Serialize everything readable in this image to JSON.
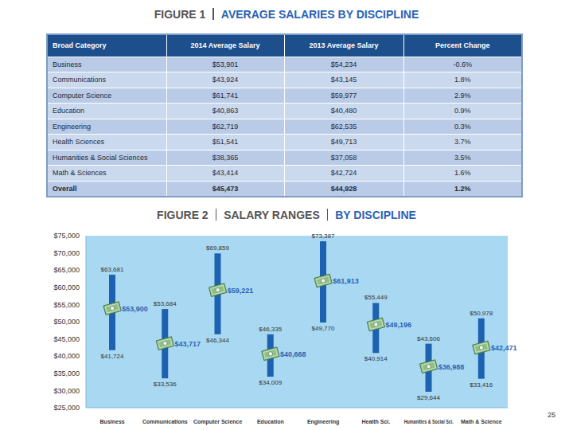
{
  "figure1": {
    "label": "FIGURE 1",
    "title": "AVERAGE SALARIES BY DISCIPLINE",
    "table": {
      "header": [
        "Broad Category",
        "2014 Average Salary",
        "2013 Average Salary",
        "Percent Change"
      ],
      "rows": [
        [
          "Business",
          "$53,901",
          "$54,234",
          "-0.6%"
        ],
        [
          "Communications",
          "$43,924",
          "$43,145",
          "1.8%"
        ],
        [
          "Computer Science",
          "$61,741",
          "$59,977",
          "2.9%"
        ],
        [
          "Education",
          "$40,863",
          "$40,480",
          "0.9%"
        ],
        [
          "Engineering",
          "$62,719",
          "$62,535",
          "0.3%"
        ],
        [
          "Health Sciences",
          "$51,541",
          "$49,713",
          "3.7%"
        ],
        [
          "Humanities & Social Sciences",
          "$38,365",
          "$37,058",
          "3.5%"
        ],
        [
          "Math & Sciences",
          "$43,414",
          "$42,724",
          "1.6%"
        ],
        [
          "Overall",
          "$45,473",
          "$44,928",
          "1.2%"
        ]
      ]
    }
  },
  "chart_data": {
    "type": "range_bar",
    "label": "FIGURE 2",
    "title": "SALARY RANGES",
    "subtitle": "BY DISCIPLINE",
    "categories": [
      "Business",
      "Communications",
      "Computer Science",
      "Education",
      "Engineering",
      "Health Sci.",
      "Humanities & Social Sci.",
      "Math & Science"
    ],
    "low": {
      "values": [
        41724,
        33536,
        46344,
        34009,
        49770,
        40914,
        29644,
        33416
      ],
      "value_labels": [
        "$41,724",
        "$33,536",
        "$46,344",
        "$34,009",
        "$49,770",
        "$40,914",
        "$29,644",
        "$33,416"
      ]
    },
    "high": {
      "values": [
        63681,
        53684,
        69859,
        46335,
        73387,
        55449,
        43606,
        50978
      ],
      "value_labels": [
        "$63,681",
        "$53,684",
        "$69,859",
        "$46,335",
        "$73,387",
        "$55,449",
        "$43,606",
        "$50,978"
      ]
    },
    "average": {
      "values": [
        53900,
        43717,
        59221,
        40668,
        61913,
        49196,
        36988,
        42471
      ],
      "value_labels": [
        "$53,900",
        "$43,717",
        "$59,221",
        "$40,668",
        "$61,913",
        "$49,196",
        "$36,988",
        "$42,471"
      ],
      "color": "#8fbf86"
    },
    "color": "#1d62b0",
    "ylim": [
      25000,
      75000
    ],
    "yticks": [
      {
        "value": 25000,
        "label": "$25,000"
      },
      {
        "value": 30000,
        "label": "$30,000"
      },
      {
        "value": 35000,
        "label": "$35,000"
      },
      {
        "value": 40000,
        "label": "$40,000"
      },
      {
        "value": 45000,
        "label": "$45,000"
      },
      {
        "value": 50000,
        "label": "$50,000"
      },
      {
        "value": 55000,
        "label": "$55,000"
      },
      {
        "value": 60000,
        "label": "$60,000"
      },
      {
        "value": 65000,
        "label": "$65,000"
      },
      {
        "value": 70000,
        "label": "$70,000"
      },
      {
        "value": 75000,
        "label": "$75,000"
      }
    ],
    "grid": false,
    "data_labels": true
  },
  "page_number": "25"
}
